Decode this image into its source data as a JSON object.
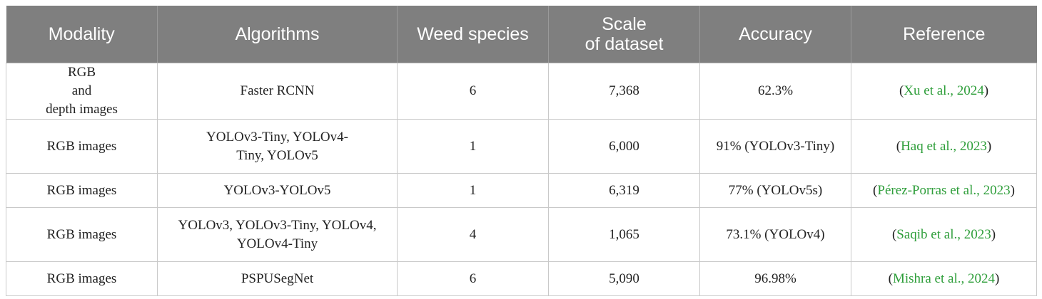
{
  "table": {
    "headers": [
      "Modality",
      "Algorithms",
      "Weed species",
      "Scale\nof dataset",
      "Accuracy",
      "Reference"
    ],
    "header_colors": {
      "background": "#7f7f7f",
      "text": "#ffffff"
    },
    "link_color": "#2e9e3a",
    "rows": [
      {
        "modality": "RGB\nand\ndepth images",
        "algorithms": "Faster RCNN",
        "weed_species": "6",
        "scale": "7,368",
        "accuracy": "62.3%",
        "reference": "Xu et al., 2024"
      },
      {
        "modality": "RGB images",
        "algorithms": "YOLOv3-Tiny, YOLOv4-\nTiny, YOLOv5",
        "weed_species": "1",
        "scale": "6,000",
        "accuracy": "91% (YOLOv3-Tiny)",
        "reference": "Haq et al., 2023"
      },
      {
        "modality": "RGB images",
        "algorithms": "YOLOv3-YOLOv5",
        "weed_species": "1",
        "scale": "6,319",
        "accuracy": "77% (YOLOv5s)",
        "reference": "Pérez-Porras et al., 2023"
      },
      {
        "modality": "RGB images",
        "algorithms": "YOLOv3, YOLOv3-Tiny, YOLOv4,\nYOLOv4-Tiny",
        "weed_species": "4",
        "scale": "1,065",
        "accuracy": "73.1% (YOLOv4)",
        "reference": "Saqib et al., 2023"
      },
      {
        "modality": "RGB images",
        "algorithms": "PSPUSegNet",
        "weed_species": "6",
        "scale": "5,090",
        "accuracy": "96.98%",
        "reference": "Mishra et al., 2024"
      }
    ]
  }
}
